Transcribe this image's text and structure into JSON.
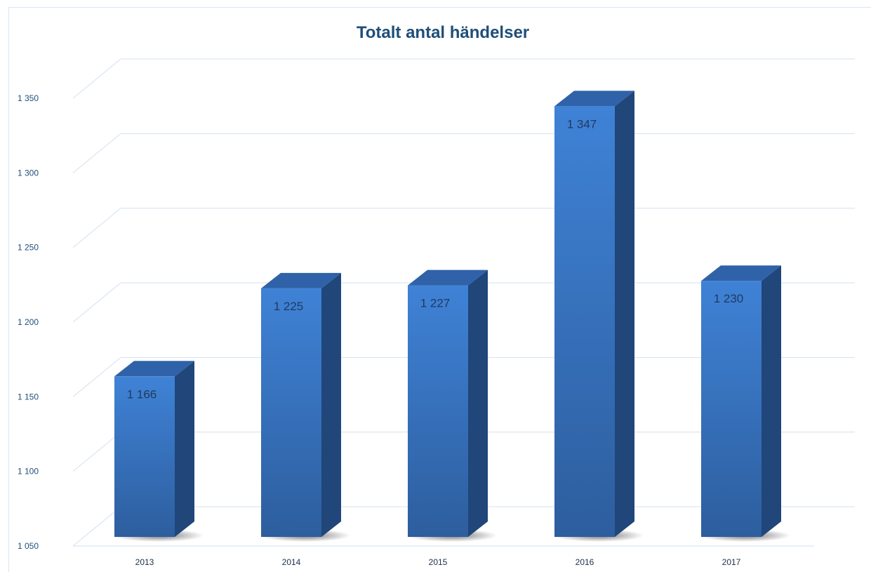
{
  "chart_data": {
    "type": "bar",
    "title": "Totalt antal händelser",
    "xlabel": "",
    "ylabel": "",
    "categories": [
      "2013",
      "2014",
      "2015",
      "2016",
      "2017"
    ],
    "values": [
      1166,
      1225,
      1227,
      1347,
      1230
    ],
    "value_labels": [
      "1 166",
      "1 225",
      "1 227",
      "1 347",
      "1 230"
    ],
    "ylim": [
      1050,
      1350
    ],
    "y_ticks": [
      1050,
      1100,
      1150,
      1200,
      1250,
      1300,
      1350
    ],
    "y_tick_labels": [
      "1 050",
      "1 100",
      "1 150",
      "1 200",
      "1 250",
      "1 300",
      "1 350"
    ],
    "grid": true,
    "style": "3d-column",
    "colors": {
      "bar_front_top": "#3f82d6",
      "bar_front_bottom": "#2d5e9e",
      "bar_side": "#20467a",
      "bar_top": "#2f62a8",
      "grid": "#d3e0f0",
      "title": "#1f4e79"
    }
  }
}
